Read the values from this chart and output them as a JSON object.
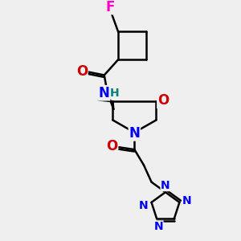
{
  "background_color": "#efefef",
  "line_color": "#000000",
  "bond_width": 1.8,
  "atom_colors": {
    "F": "#ff00cc",
    "O": "#cc0000",
    "N": "#0000ee",
    "H": "#008080",
    "C": "#000000"
  },
  "font_size_large": 12,
  "font_size_med": 11,
  "font_size_small": 10
}
